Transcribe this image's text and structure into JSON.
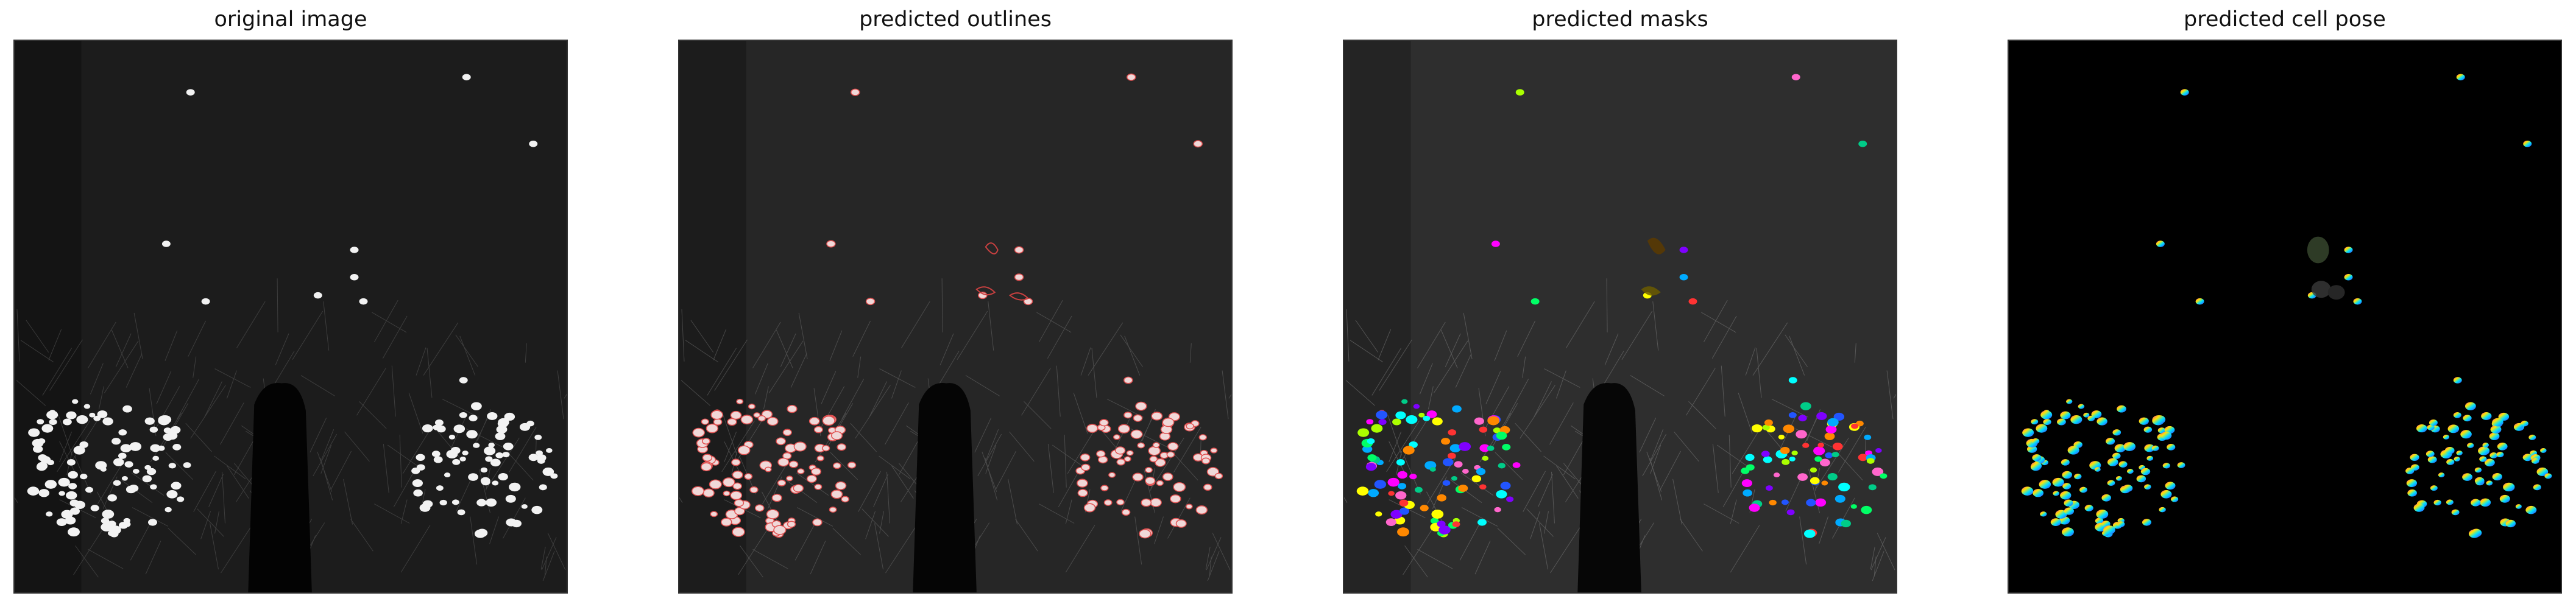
{
  "panels": [
    {
      "title": "original image",
      "icon": "fluorescence-image"
    },
    {
      "title": "predicted outlines",
      "icon": "outline-overlay-image"
    },
    {
      "title": "predicted masks",
      "icon": "mask-overlay-image"
    },
    {
      "title": "predicted cell pose",
      "icon": "flow-field-image"
    }
  ]
}
